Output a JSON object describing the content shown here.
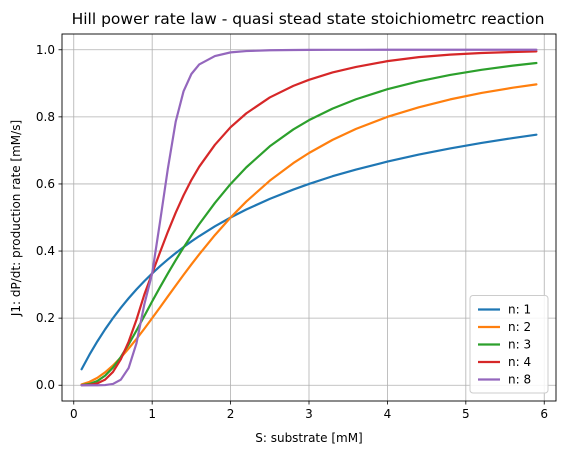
{
  "chart_data": {
    "type": "line",
    "title": "Hill power rate law - quasi stead state stoichiometrc reaction",
    "xlabel": "S: substrate [mM]",
    "ylabel": "J1: dP/dt: production rate [mM/s]",
    "xlim": [
      -0.15,
      6.15
    ],
    "ylim": [
      -0.047,
      1.047
    ],
    "xticks": [
      0,
      1,
      2,
      3,
      4,
      5,
      6
    ],
    "yticks": [
      0.0,
      0.2,
      0.4,
      0.6,
      0.8,
      1.0
    ],
    "xtick_labels": [
      "0",
      "1",
      "2",
      "3",
      "4",
      "5",
      "6"
    ],
    "ytick_labels": [
      "0.0",
      "0.2",
      "0.4",
      "0.6",
      "0.8",
      "1.0"
    ],
    "grid": true,
    "legend_position": "lower-right",
    "x": [
      0.1,
      0.2,
      0.3,
      0.4,
      0.5,
      0.6,
      0.7,
      0.8,
      0.9,
      1.0,
      1.1,
      1.2,
      1.3,
      1.4,
      1.5,
      1.6,
      1.8,
      2.0,
      2.2,
      2.5,
      2.8,
      3.0,
      3.3,
      3.6,
      4.0,
      4.4,
      4.8,
      5.2,
      5.6,
      5.9
    ],
    "series": [
      {
        "name": "n: 1",
        "color": "#1f77b4",
        "values": [
          0.0476,
          0.0909,
          0.1304,
          0.1667,
          0.2,
          0.2308,
          0.2593,
          0.2857,
          0.3103,
          0.3333,
          0.3548,
          0.375,
          0.3939,
          0.4118,
          0.4286,
          0.4444,
          0.4737,
          0.5,
          0.5238,
          0.5556,
          0.5833,
          0.6,
          0.623,
          0.6429,
          0.6667,
          0.6875,
          0.7059,
          0.7222,
          0.7368,
          0.7468
        ]
      },
      {
        "name": "n: 2",
        "color": "#ff7f0e",
        "values": [
          0.0025,
          0.0099,
          0.022,
          0.0385,
          0.0588,
          0.0826,
          0.1093,
          0.1379,
          0.1684,
          0.2,
          0.2322,
          0.2647,
          0.297,
          0.3289,
          0.36,
          0.3902,
          0.4475,
          0.5,
          0.5475,
          0.6098,
          0.6622,
          0.6923,
          0.7314,
          0.7642,
          0.8,
          0.8286,
          0.8521,
          0.8712,
          0.887,
          0.8969
        ]
      },
      {
        "name": "n: 3",
        "color": "#2ca02c",
        "values": [
          0.0005,
          0.0037,
          0.0125,
          0.0286,
          0.0526,
          0.0842,
          0.1218,
          0.1632,
          0.2065,
          0.25,
          0.2923,
          0.3333,
          0.3727,
          0.4104,
          0.4463,
          0.4803,
          0.5435,
          0.6,
          0.6494,
          0.7123,
          0.7625,
          0.7902,
          0.8246,
          0.8525,
          0.8825,
          0.9061,
          0.925,
          0.9403,
          0.9528,
          0.9606
        ]
      },
      {
        "name": "n: 4",
        "color": "#d62728",
        "values": [
          0.0001,
          0.0011,
          0.0054,
          0.0168,
          0.0396,
          0.0772,
          0.1299,
          0.1956,
          0.2703,
          0.3333,
          0.3964,
          0.4574,
          0.5144,
          0.566,
          0.6117,
          0.6515,
          0.7167,
          0.7692,
          0.8104,
          0.8579,
          0.8923,
          0.9104,
          0.9323,
          0.9489,
          0.9661,
          0.9781,
          0.9855,
          0.9903,
          0.9934,
          0.9951
        ]
      },
      {
        "name": "n: 8",
        "color": "#9467bd",
        "values": [
          0.0,
          0.0,
          0.0,
          0.0005,
          0.0039,
          0.0165,
          0.0515,
          0.1253,
          0.2411,
          0.3333,
          0.4869,
          0.6457,
          0.7858,
          0.8761,
          0.9278,
          0.9562,
          0.9813,
          0.9922,
          0.9961,
          0.9985,
          0.9993,
          0.9996,
          0.9998,
          0.9999,
          1.0,
          1.0,
          1.0,
          1.0,
          1.0,
          1.0
        ]
      }
    ]
  }
}
